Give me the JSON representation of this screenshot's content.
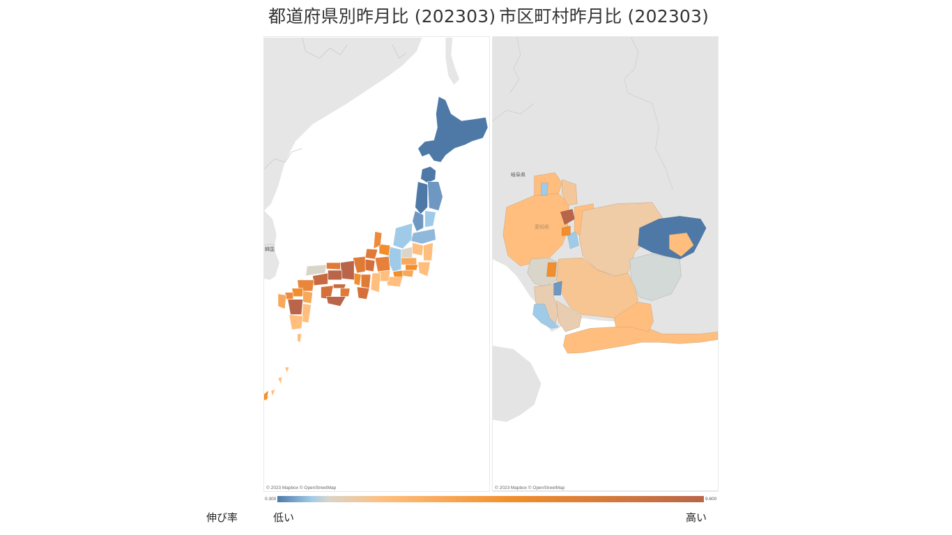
{
  "titles": {
    "left": "都道府県別昨月比 (202303)",
    "right": "市区町村昨月比 (202303)"
  },
  "maps": {
    "attribution": "© 2023 Mapbox  © OpenStreetMap",
    "left_labels": {
      "korea": "韓国"
    },
    "right_labels": {
      "gifu": "岐阜県",
      "aichi": "愛知県"
    }
  },
  "legend": {
    "title": "伸び率",
    "low": "低い",
    "high": "高い",
    "min": "0.300",
    "max": "9.600",
    "colors": {
      "lowest": "#4e79a7",
      "low": "#a0cbe8",
      "neutral": "#d9d5c9",
      "mid": "#ffbe7d",
      "high": "#f28e2b",
      "highest": "#b9654a"
    }
  }
}
